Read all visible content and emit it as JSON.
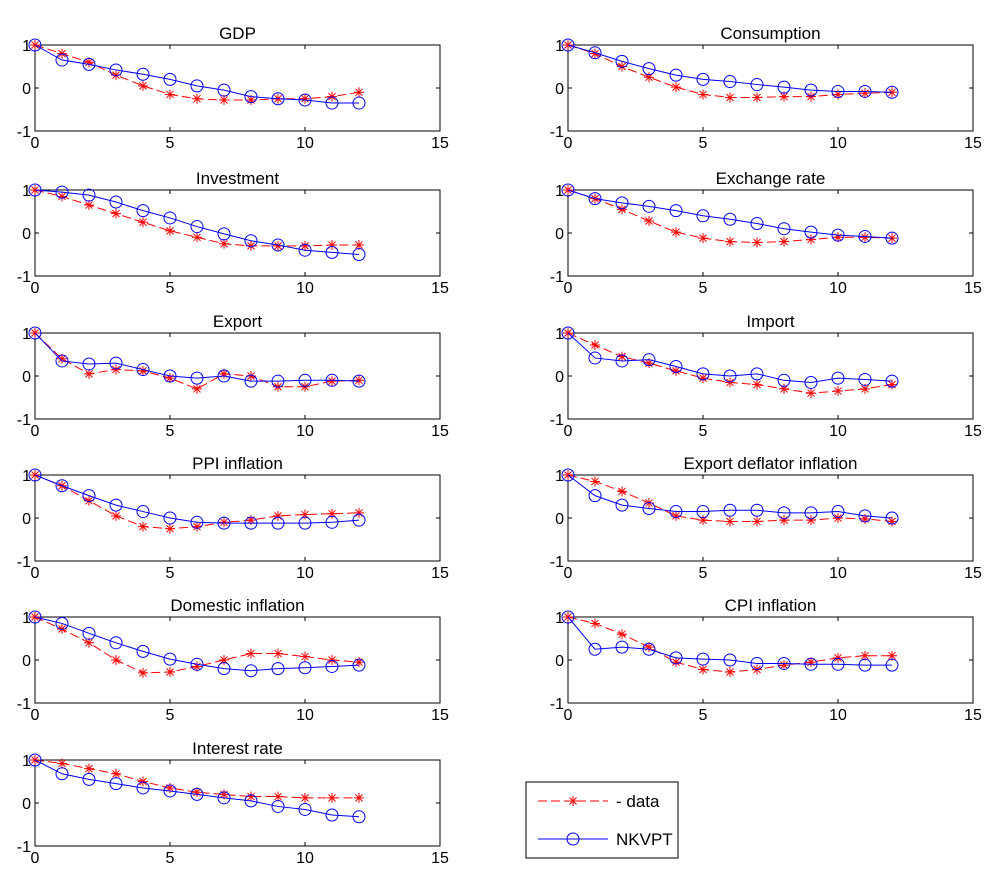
{
  "colors": {
    "data": "#ff0000",
    "NKVPT": "#0000ff",
    "axes": "#000000",
    "background": "#ffffff"
  },
  "chart_data": [
    {
      "type": "line",
      "title": "GDP",
      "xlim": [
        0,
        15
      ],
      "ylim": [
        -1,
        1
      ],
      "xticks": [
        "0",
        "5",
        "10",
        "15"
      ],
      "yticks": [
        "1",
        "0",
        "-1"
      ],
      "x": [
        0,
        1,
        2,
        3,
        4,
        5,
        6,
        7,
        8,
        9,
        10,
        11,
        12
      ],
      "series": [
        {
          "name": "data",
          "marker": "star",
          "values": [
            1.0,
            0.8,
            0.6,
            0.3,
            0.05,
            -0.15,
            -0.25,
            -0.28,
            -0.28,
            -0.25,
            -0.25,
            -0.2,
            -0.1
          ]
        },
        {
          "name": "NKVPT",
          "marker": "circle",
          "values": [
            1.0,
            0.65,
            0.55,
            0.42,
            0.32,
            0.2,
            0.05,
            -0.05,
            -0.2,
            -0.25,
            -0.28,
            -0.35,
            -0.35
          ]
        }
      ]
    },
    {
      "type": "line",
      "title": "Consumption",
      "xlim": [
        0,
        15
      ],
      "ylim": [
        -1,
        1
      ],
      "xticks": [
        "0",
        "5",
        "10",
        "15"
      ],
      "yticks": [
        "1",
        "0",
        "-1"
      ],
      "x": [
        0,
        1,
        2,
        3,
        4,
        5,
        6,
        7,
        8,
        9,
        10,
        11,
        12
      ],
      "series": [
        {
          "name": "data",
          "marker": "star",
          "values": [
            1.0,
            0.8,
            0.5,
            0.25,
            0.02,
            -0.15,
            -0.22,
            -0.22,
            -0.2,
            -0.2,
            -0.15,
            -0.12,
            -0.1
          ]
        },
        {
          "name": "NKVPT",
          "marker": "circle",
          "values": [
            1.0,
            0.82,
            0.62,
            0.45,
            0.3,
            0.2,
            0.15,
            0.08,
            0.02,
            -0.05,
            -0.08,
            -0.08,
            -0.1
          ]
        }
      ]
    },
    {
      "type": "line",
      "title": "Investment",
      "xlim": [
        0,
        15
      ],
      "ylim": [
        -1,
        1
      ],
      "xticks": [
        "0",
        "5",
        "10",
        "15"
      ],
      "yticks": [
        "1",
        "0",
        "-1"
      ],
      "x": [
        0,
        1,
        2,
        3,
        4,
        5,
        6,
        7,
        8,
        9,
        10,
        11,
        12
      ],
      "series": [
        {
          "name": "data",
          "marker": "star",
          "values": [
            1.0,
            0.85,
            0.65,
            0.45,
            0.25,
            0.05,
            -0.1,
            -0.25,
            -0.3,
            -0.3,
            -0.3,
            -0.28,
            -0.28
          ]
        },
        {
          "name": "NKVPT",
          "marker": "circle",
          "values": [
            1.0,
            0.95,
            0.88,
            0.72,
            0.52,
            0.35,
            0.15,
            -0.02,
            -0.18,
            -0.28,
            -0.4,
            -0.45,
            -0.5
          ]
        }
      ]
    },
    {
      "type": "line",
      "title": "Exchange rate",
      "xlim": [
        0,
        15
      ],
      "ylim": [
        -1,
        1
      ],
      "xticks": [
        "0",
        "5",
        "10",
        "15"
      ],
      "yticks": [
        "1",
        "0",
        "-1"
      ],
      "x": [
        0,
        1,
        2,
        3,
        4,
        5,
        6,
        7,
        8,
        9,
        10,
        11,
        12
      ],
      "series": [
        {
          "name": "data",
          "marker": "star",
          "values": [
            1.0,
            0.8,
            0.55,
            0.28,
            0.02,
            -0.12,
            -0.2,
            -0.22,
            -0.2,
            -0.15,
            -0.1,
            -0.1,
            -0.12
          ]
        },
        {
          "name": "NKVPT",
          "marker": "circle",
          "values": [
            1.0,
            0.8,
            0.7,
            0.62,
            0.52,
            0.4,
            0.32,
            0.22,
            0.1,
            0.02,
            -0.05,
            -0.08,
            -0.12
          ]
        }
      ]
    },
    {
      "type": "line",
      "title": "Export",
      "xlim": [
        0,
        15
      ],
      "ylim": [
        -1,
        1
      ],
      "xticks": [
        "0",
        "5",
        "10",
        "15"
      ],
      "yticks": [
        "1",
        "0",
        "-1"
      ],
      "x": [
        0,
        1,
        2,
        3,
        4,
        5,
        6,
        7,
        8,
        9,
        10,
        11,
        12
      ],
      "series": [
        {
          "name": "data",
          "marker": "star",
          "values": [
            1.0,
            0.4,
            0.05,
            0.15,
            0.12,
            -0.05,
            -0.3,
            0.05,
            0.0,
            -0.25,
            -0.25,
            -0.12,
            -0.1
          ]
        },
        {
          "name": "NKVPT",
          "marker": "circle",
          "values": [
            1.0,
            0.35,
            0.28,
            0.3,
            0.15,
            0.0,
            -0.05,
            0.0,
            -0.12,
            -0.12,
            -0.1,
            -0.1,
            -0.12
          ]
        }
      ]
    },
    {
      "type": "line",
      "title": "Import",
      "xlim": [
        0,
        15
      ],
      "ylim": [
        -1,
        1
      ],
      "xticks": [
        "0",
        "5",
        "10",
        "15"
      ],
      "yticks": [
        "1",
        "0",
        "-1"
      ],
      "x": [
        0,
        1,
        2,
        3,
        4,
        5,
        6,
        7,
        8,
        9,
        10,
        11,
        12
      ],
      "series": [
        {
          "name": "data",
          "marker": "star",
          "values": [
            1.0,
            0.72,
            0.45,
            0.3,
            0.12,
            -0.05,
            -0.15,
            -0.2,
            -0.3,
            -0.4,
            -0.35,
            -0.3,
            -0.2
          ]
        },
        {
          "name": "NKVPT",
          "marker": "circle",
          "values": [
            1.0,
            0.42,
            0.35,
            0.38,
            0.22,
            0.05,
            0.0,
            0.05,
            -0.1,
            -0.15,
            -0.05,
            -0.08,
            -0.12
          ]
        }
      ]
    },
    {
      "type": "line",
      "title": "PPI inflation",
      "xlim": [
        0,
        15
      ],
      "ylim": [
        -1,
        1
      ],
      "xticks": [
        "0",
        "5",
        "10",
        "15"
      ],
      "yticks": [
        "1",
        "0",
        "-1"
      ],
      "x": [
        0,
        1,
        2,
        3,
        4,
        5,
        6,
        7,
        8,
        9,
        10,
        11,
        12
      ],
      "series": [
        {
          "name": "data",
          "marker": "star",
          "values": [
            1.0,
            0.75,
            0.4,
            0.05,
            -0.2,
            -0.25,
            -0.2,
            -0.1,
            -0.05,
            0.05,
            0.08,
            0.1,
            0.12
          ]
        },
        {
          "name": "NKVPT",
          "marker": "circle",
          "values": [
            1.0,
            0.75,
            0.52,
            0.3,
            0.15,
            0.0,
            -0.1,
            -0.12,
            -0.12,
            -0.12,
            -0.12,
            -0.1,
            -0.05
          ]
        }
      ]
    },
    {
      "type": "line",
      "title": "Export deflator inflation",
      "xlim": [
        0,
        15
      ],
      "ylim": [
        -1,
        1
      ],
      "xticks": [
        "0",
        "5",
        "10",
        "15"
      ],
      "yticks": [
        "1",
        "0",
        "-1"
      ],
      "x": [
        0,
        1,
        2,
        3,
        4,
        5,
        6,
        7,
        8,
        9,
        10,
        11,
        12
      ],
      "series": [
        {
          "name": "data",
          "marker": "star",
          "values": [
            1.0,
            0.85,
            0.62,
            0.35,
            0.05,
            -0.05,
            -0.08,
            -0.08,
            -0.05,
            -0.05,
            0.0,
            -0.02,
            -0.08
          ]
        },
        {
          "name": "NKVPT",
          "marker": "circle",
          "values": [
            1.0,
            0.52,
            0.3,
            0.22,
            0.15,
            0.15,
            0.18,
            0.18,
            0.12,
            0.12,
            0.15,
            0.05,
            0.0
          ]
        }
      ]
    },
    {
      "type": "line",
      "title": "Domestic inflation",
      "xlim": [
        0,
        15
      ],
      "ylim": [
        -1,
        1
      ],
      "xticks": [
        "0",
        "5",
        "10",
        "15"
      ],
      "yticks": [
        "1",
        "0",
        "-1"
      ],
      "x": [
        0,
        1,
        2,
        3,
        4,
        5,
        6,
        7,
        8,
        9,
        10,
        11,
        12
      ],
      "series": [
        {
          "name": "data",
          "marker": "star",
          "values": [
            1.0,
            0.72,
            0.4,
            0.0,
            -0.3,
            -0.28,
            -0.15,
            0.0,
            0.15,
            0.15,
            0.08,
            0.0,
            -0.05
          ]
        },
        {
          "name": "NKVPT",
          "marker": "circle",
          "values": [
            1.0,
            0.85,
            0.62,
            0.4,
            0.2,
            0.02,
            -0.1,
            -0.2,
            -0.25,
            -0.2,
            -0.18,
            -0.15,
            -0.12
          ]
        }
      ]
    },
    {
      "type": "line",
      "title": "CPI inflation",
      "xlim": [
        0,
        15
      ],
      "ylim": [
        -1,
        1
      ],
      "xticks": [
        "0",
        "5",
        "10",
        "15"
      ],
      "yticks": [
        "1",
        "0",
        "-1"
      ],
      "x": [
        0,
        1,
        2,
        3,
        4,
        5,
        6,
        7,
        8,
        9,
        10,
        11,
        12
      ],
      "series": [
        {
          "name": "data",
          "marker": "star",
          "values": [
            1.0,
            0.85,
            0.6,
            0.3,
            -0.05,
            -0.22,
            -0.28,
            -0.22,
            -0.12,
            -0.05,
            0.05,
            0.1,
            0.1
          ]
        },
        {
          "name": "NKVPT",
          "marker": "circle",
          "values": [
            1.0,
            0.25,
            0.3,
            0.25,
            0.05,
            0.02,
            0.0,
            -0.08,
            -0.08,
            -0.1,
            -0.1,
            -0.12,
            -0.12
          ]
        }
      ]
    },
    {
      "type": "line",
      "title": "Interest rate",
      "xlim": [
        0,
        15
      ],
      "ylim": [
        -1,
        1
      ],
      "xticks": [
        "0",
        "5",
        "10",
        "15"
      ],
      "yticks": [
        "1",
        "0",
        "-1"
      ],
      "x": [
        0,
        1,
        2,
        3,
        4,
        5,
        6,
        7,
        8,
        9,
        10,
        11,
        12
      ],
      "series": [
        {
          "name": "data",
          "marker": "star",
          "values": [
            1.0,
            0.92,
            0.8,
            0.68,
            0.5,
            0.35,
            0.25,
            0.2,
            0.15,
            0.15,
            0.12,
            0.12,
            0.12
          ]
        },
        {
          "name": "NKVPT",
          "marker": "circle",
          "values": [
            1.0,
            0.68,
            0.55,
            0.45,
            0.35,
            0.28,
            0.2,
            0.12,
            0.05,
            -0.08,
            -0.15,
            -0.28,
            -0.32
          ]
        }
      ]
    }
  ],
  "legend": {
    "entries": [
      {
        "label": "- data",
        "series": "data",
        "marker": "star"
      },
      {
        "label": "NKVPT",
        "series": "NKVPT",
        "marker": "circle"
      }
    ]
  }
}
